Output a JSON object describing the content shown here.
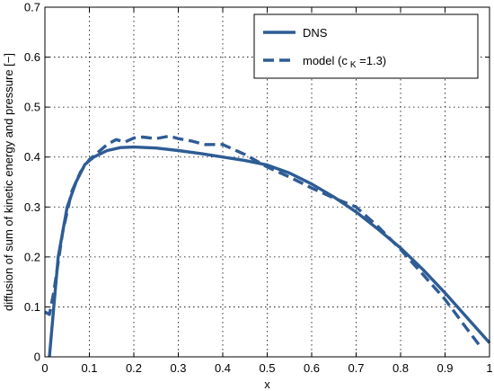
{
  "chart_data": {
    "type": "line",
    "title": "",
    "xlabel": "x",
    "ylabel": "diffusion of sum of kinetic energy and pressure [−]",
    "xlim": [
      0,
      1
    ],
    "ylim": [
      0,
      0.7
    ],
    "x_ticks": [
      "0",
      "0.1",
      "0.2",
      "0.3",
      "0.4",
      "0.5",
      "0.6",
      "0.7",
      "0.8",
      "0.9",
      "1"
    ],
    "y_ticks": [
      "0",
      "0.1",
      "0.2",
      "0.3",
      "0.4",
      "0.5",
      "0.6",
      "0.7"
    ],
    "grid": true,
    "legend_position": "top-right",
    "series": [
      {
        "name": "DNS",
        "style": "solid",
        "color": "#2e5c94",
        "x": [
          0.01,
          0.02,
          0.03,
          0.05,
          0.07,
          0.09,
          0.11,
          0.14,
          0.17,
          0.2,
          0.25,
          0.3,
          0.35,
          0.4,
          0.45,
          0.5,
          0.55,
          0.6,
          0.65,
          0.7,
          0.75,
          0.8,
          0.85,
          0.9,
          0.95,
          1.0
        ],
        "y": [
          0.0,
          0.1,
          0.2,
          0.3,
          0.35,
          0.385,
          0.4,
          0.413,
          0.419,
          0.42,
          0.418,
          0.413,
          0.407,
          0.4,
          0.393,
          0.384,
          0.368,
          0.346,
          0.32,
          0.29,
          0.255,
          0.218,
          0.175,
          0.128,
          0.078,
          0.028
        ]
      },
      {
        "name_parts": [
          "model (c",
          "K",
          " =1.3)"
        ],
        "style": "dashed",
        "color": "#2e5c94",
        "x": [
          0.0,
          0.01,
          0.02,
          0.04,
          0.06,
          0.08,
          0.1,
          0.12,
          0.14,
          0.16,
          0.18,
          0.2,
          0.22,
          0.25,
          0.28,
          0.3,
          0.33,
          0.36,
          0.4,
          0.45,
          0.5,
          0.55,
          0.6,
          0.65,
          0.7,
          0.75,
          0.8,
          0.85,
          0.9,
          0.95,
          0.98
        ],
        "y": [
          0.09,
          0.085,
          0.13,
          0.25,
          0.33,
          0.37,
          0.395,
          0.41,
          0.425,
          0.435,
          0.43,
          0.438,
          0.44,
          0.437,
          0.442,
          0.437,
          0.432,
          0.425,
          0.425,
          0.405,
          0.38,
          0.36,
          0.338,
          0.318,
          0.3,
          0.26,
          0.215,
          0.165,
          0.115,
          0.055,
          0.02
        ]
      }
    ]
  }
}
